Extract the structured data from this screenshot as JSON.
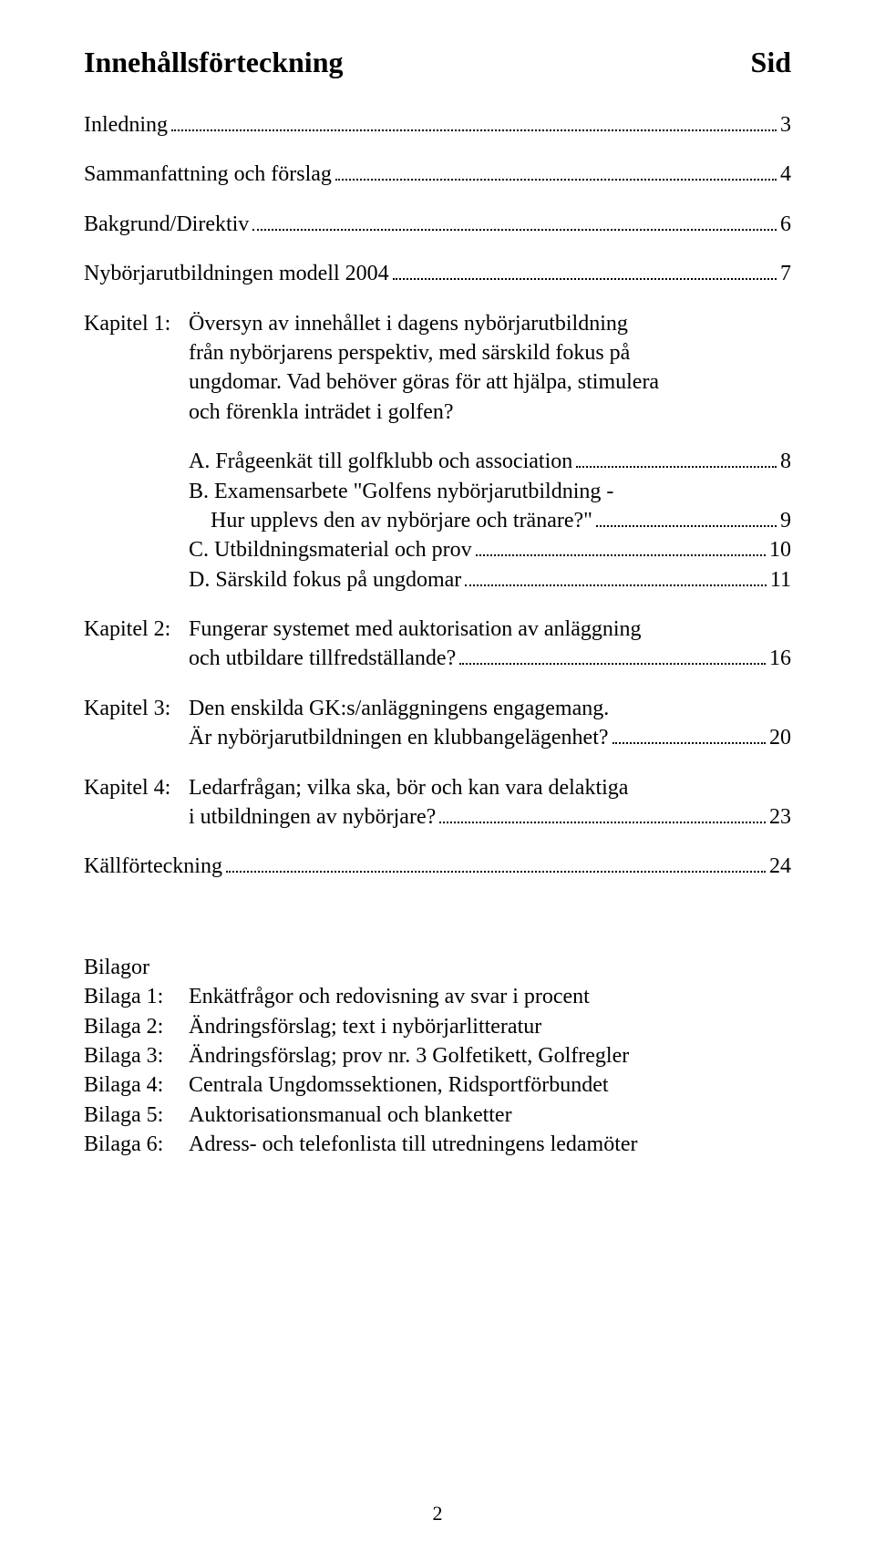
{
  "heading": {
    "left": "Innehållsförteckning",
    "right": "Sid"
  },
  "simple_entries": [
    {
      "label": "Inledning",
      "page": "3"
    },
    {
      "label": "Sammanfattning och förslag",
      "page": "4"
    },
    {
      "label": "Bakgrund/Direktiv",
      "page": "6"
    },
    {
      "label": "Nybörjarutbildningen modell 2004",
      "page": "7"
    }
  ],
  "chapter1": {
    "prefix": "Kapitel 1:",
    "body": "Översyn av innehållet i dagens nybörjarutbildning\nfrån nybörjarens perspektiv, med särskild fokus på\nungdomar. Vad behöver göras för att hjälpa, stimulera\noch förenkla inträdet i golfen?",
    "subs": [
      {
        "label": "A. Frågeenkät till golfklubb och association",
        "page": "8",
        "continuation": null
      },
      {
        "label": "B. Examensarbete \"Golfens nybörjarutbildning -",
        "page": null,
        "continuation": {
          "label": "    Hur upplevs den av nybörjare och tränare?\"",
          "page": "9"
        }
      },
      {
        "label": "C. Utbildningsmaterial och prov",
        "page": "10",
        "continuation": null
      },
      {
        "label": "D. Särskild fokus på ungdomar",
        "page": "11",
        "continuation": null
      }
    ]
  },
  "chapter2": {
    "prefix": "Kapitel 2:",
    "line1": "Fungerar systemet med auktorisation av anläggning",
    "line2": {
      "label": "och utbildare tillfredställande?",
      "page": "16"
    }
  },
  "chapter3": {
    "prefix": "Kapitel 3:",
    "line1": "Den enskilda GK:s/anläggningens engagemang.",
    "line2": {
      "label": "Är nybörjarutbildningen en klubbangelägenhet?",
      "page": "20"
    }
  },
  "chapter4": {
    "prefix": "Kapitel 4:",
    "line1": "Ledarfrågan; vilka ska, bör och kan vara delaktiga",
    "line2": {
      "label": "i utbildningen av nybörjare?",
      "page": "23"
    }
  },
  "kallforteckning": {
    "label": "Källförteckning",
    "page": "24"
  },
  "bilagor": {
    "heading": "Bilagor",
    "items": [
      {
        "prefix": "Bilaga 1:",
        "desc": "Enkätfrågor och redovisning av svar i procent"
      },
      {
        "prefix": "Bilaga 2:",
        "desc": "Ändringsförslag; text i nybörjarlitteratur"
      },
      {
        "prefix": "Bilaga 3:",
        "desc": "Ändringsförslag; prov nr. 3 Golfetikett, Golfregler"
      },
      {
        "prefix": "Bilaga 4:",
        "desc": "Centrala Ungdomssektionen, Ridsportförbundet"
      },
      {
        "prefix": "Bilaga 5:",
        "desc": "Auktorisationsmanual och blanketter"
      },
      {
        "prefix": "Bilaga 6:",
        "desc": "Adress- och telefonlista till utredningens ledamöter"
      }
    ]
  },
  "page_number": "2"
}
